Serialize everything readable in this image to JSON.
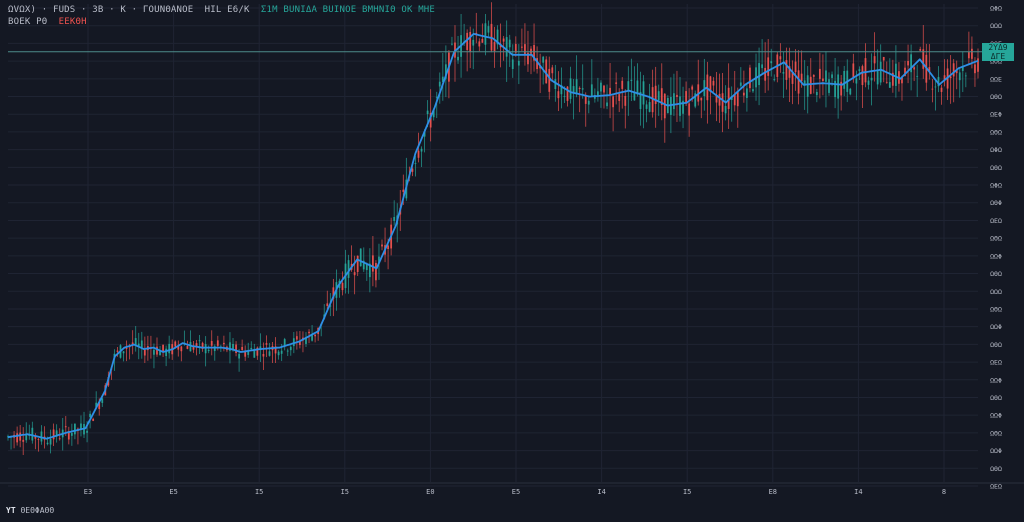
{
  "legend": {
    "symbol_line": "ΩVΩΧ) · FUDS · 3Β · Κ · ΓΟUΝΘΑΝΟΕ",
    "ohlc_label": "ΗΙL Ε6/Κ",
    "ohlc_values": "Σ1Μ  ΒUΝΙΔΑ  ΒUΙΝΟΕ  ΒΜΗΝΙΘ  ΟΚ  ΜΗΕ",
    "indicator_label": "ΒΟΕΚ  ΡΘ",
    "indicator_value": "ΕΕΚΘΗ"
  },
  "price_tag": {
    "line1": "2ΥΔ9",
    "line2": "ΔΓΕ"
  },
  "brand": {
    "logo": "ΥΤ",
    "text": "ΘΕΘΦΑΘΘ"
  },
  "colors": {
    "background": "#141823",
    "grid": "#1f2433",
    "up": "#26a69a",
    "down": "#ef5350",
    "ma_line": "#2e8fe6",
    "axis_text": "#b8bcc8",
    "price_line": "#4d8b8a"
  },
  "chart_data": {
    "type": "line",
    "title": "",
    "xlabel": "",
    "ylabel": "",
    "x": [
      0,
      2,
      4,
      6,
      8,
      10,
      11,
      12,
      13,
      14,
      15,
      16,
      17,
      18,
      19,
      20,
      21,
      22,
      23,
      24,
      26,
      28,
      30,
      32,
      34,
      36,
      38,
      40,
      42,
      44,
      46,
      48,
      50,
      52,
      54,
      56,
      58,
      60,
      62,
      64,
      66,
      68,
      70,
      72,
      74,
      76,
      78,
      80,
      82,
      84,
      86,
      88,
      90,
      92,
      94,
      96,
      98,
      100
    ],
    "ma_values": [
      3.0,
      3.2,
      2.9,
      3.3,
      3.6,
      6.1,
      8.4,
      9.0,
      9.2,
      8.9,
      9.0,
      8.7,
      8.9,
      9.3,
      9.1,
      9.0,
      9.0,
      9.0,
      8.9,
      8.7,
      8.9,
      9.0,
      9.4,
      10.1,
      13.1,
      14.9,
      14.3,
      17.2,
      22.0,
      25.1,
      28.8,
      30.0,
      29.7,
      28.6,
      28.6,
      26.9,
      26.1,
      25.8,
      25.9,
      26.2,
      25.8,
      25.2,
      25.4,
      26.4,
      25.4,
      26.6,
      27.4,
      28.1,
      26.6,
      26.7,
      26.6,
      27.4,
      27.6,
      27.0,
      28.3,
      26.6,
      27.7,
      28.2
    ],
    "candles": {
      "note_values_are_ma_plus_noise": false
    },
    "ylim": [
      0,
      32
    ],
    "x_tick_labels": [
      "Ε3",
      "Ε5",
      "Ι5",
      "Ι5",
      "Ε0",
      "Ε5",
      "Ι4",
      "Ι5",
      "Ε8",
      "Ι4",
      "8"
    ],
    "y_tick_labels": [
      "ΩΦΩ",
      "ΩΩΩ",
      "ΩΩΕ",
      "ΩΘΩ",
      "ΩΩΕ",
      "ΩΘΩ",
      "ΩΕΦ",
      "ΩΘΩ",
      "ΩΦΩ",
      "ΩΘΩ",
      "ΩΦΩ",
      "ΩΘΦ",
      "ΩΕΩ",
      "ΩΘΩ",
      "ΩΩΦ",
      "ΩΘΩ",
      "ΩΩΩ",
      "ΩΘΩ",
      "ΩΩΦ",
      "ΩΘΩ",
      "ΩΕΩ",
      "ΩΩΦ",
      "ΩΘΩ",
      "ΩΩΦ",
      "ΩΘΩ",
      "ΩΩΦ",
      "ΩΘΩ",
      "ΩΕΩ"
    ],
    "grid": true,
    "legend_position": "top-left",
    "last_price": 28.8
  }
}
